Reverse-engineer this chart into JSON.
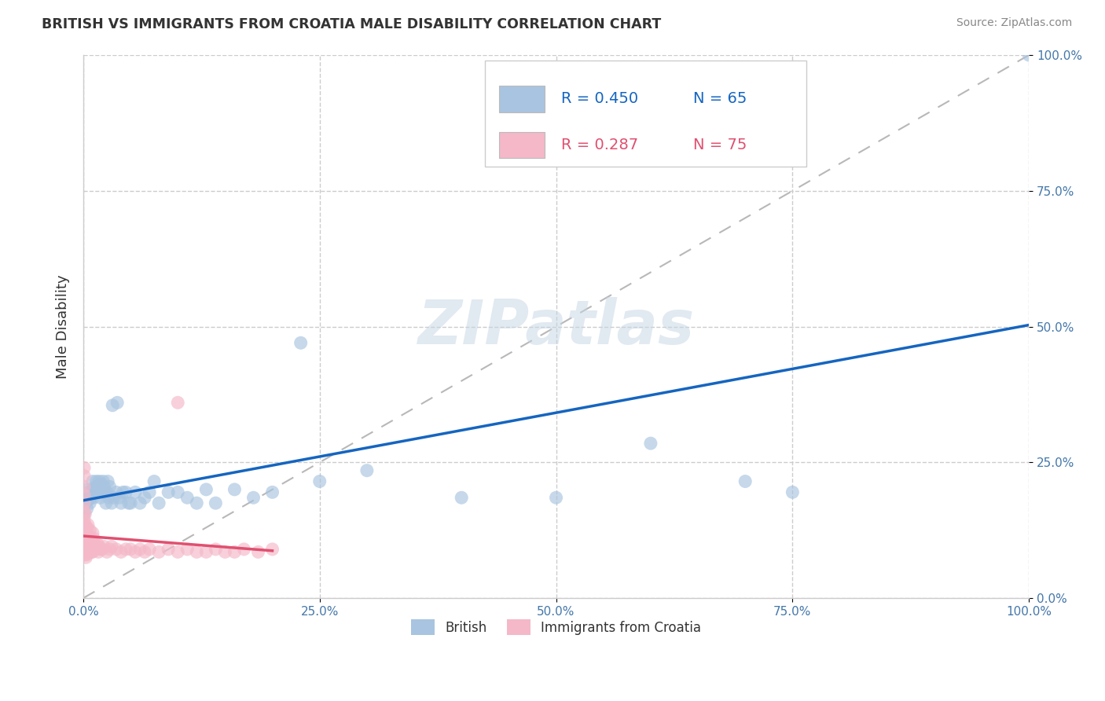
{
  "title": "BRITISH VS IMMIGRANTS FROM CROATIA MALE DISABILITY CORRELATION CHART",
  "source": "Source: ZipAtlas.com",
  "ylabel": "Male Disability",
  "watermark": "ZIPatlas",
  "british_R": "0.450",
  "british_N": "65",
  "croatia_R": "0.287",
  "croatia_N": "75",
  "british_color": "#a8c4e0",
  "british_line_color": "#1565c0",
  "croatia_color": "#f4b8c8",
  "croatia_line_color": "#e05070",
  "background_color": "#ffffff",
  "grid_color": "#cccccc",
  "xlim": [
    0,
    1
  ],
  "ylim": [
    0,
    1
  ],
  "xticks": [
    0,
    0.25,
    0.5,
    0.75,
    1.0
  ],
  "yticks": [
    0,
    0.25,
    0.5,
    0.75,
    1.0
  ],
  "xticklabels": [
    "0.0%",
    "25.0%",
    "50.0%",
    "75.0%",
    "100.0%"
  ],
  "yticklabels": [
    "0.0%",
    "25.0%",
    "50.0%",
    "75.0%",
    "100.0%"
  ],
  "british_x": [
    0.001,
    0.002,
    0.003,
    0.003,
    0.004,
    0.005,
    0.006,
    0.007,
    0.008,
    0.009,
    0.01,
    0.01,
    0.011,
    0.012,
    0.013,
    0.014,
    0.015,
    0.016,
    0.017,
    0.018,
    0.019,
    0.02,
    0.021,
    0.022,
    0.023,
    0.024,
    0.025,
    0.026,
    0.027,
    0.028,
    0.03,
    0.031,
    0.032,
    0.035,
    0.036,
    0.038,
    0.04,
    0.042,
    0.045,
    0.048,
    0.05,
    0.055,
    0.06,
    0.065,
    0.07,
    0.075,
    0.08,
    0.09,
    0.1,
    0.11,
    0.12,
    0.13,
    0.14,
    0.16,
    0.18,
    0.2,
    0.25,
    0.3,
    0.4,
    0.5,
    0.6,
    0.7,
    0.23,
    0.75,
    1.0
  ],
  "british_y": [
    0.155,
    0.175,
    0.185,
    0.2,
    0.165,
    0.18,
    0.195,
    0.175,
    0.185,
    0.195,
    0.2,
    0.215,
    0.185,
    0.195,
    0.205,
    0.215,
    0.195,
    0.205,
    0.215,
    0.185,
    0.21,
    0.195,
    0.215,
    0.205,
    0.195,
    0.175,
    0.195,
    0.215,
    0.185,
    0.205,
    0.175,
    0.355,
    0.185,
    0.195,
    0.36,
    0.185,
    0.175,
    0.195,
    0.195,
    0.175,
    0.175,
    0.195,
    0.175,
    0.185,
    0.195,
    0.215,
    0.175,
    0.195,
    0.195,
    0.185,
    0.175,
    0.2,
    0.175,
    0.2,
    0.185,
    0.195,
    0.215,
    0.235,
    0.185,
    0.185,
    0.285,
    0.215,
    0.47,
    0.195,
    1.0
  ],
  "croatia_x": [
    0.001,
    0.001,
    0.001,
    0.001,
    0.001,
    0.001,
    0.001,
    0.001,
    0.001,
    0.001,
    0.001,
    0.002,
    0.002,
    0.002,
    0.002,
    0.002,
    0.003,
    0.003,
    0.003,
    0.003,
    0.004,
    0.004,
    0.004,
    0.004,
    0.005,
    0.005,
    0.005,
    0.005,
    0.006,
    0.006,
    0.007,
    0.007,
    0.007,
    0.008,
    0.008,
    0.009,
    0.009,
    0.01,
    0.01,
    0.01,
    0.011,
    0.011,
    0.012,
    0.013,
    0.014,
    0.015,
    0.016,
    0.017,
    0.018,
    0.02,
    0.022,
    0.025,
    0.028,
    0.03,
    0.035,
    0.04,
    0.045,
    0.05,
    0.055,
    0.06,
    0.065,
    0.07,
    0.08,
    0.09,
    0.1,
    0.11,
    0.12,
    0.13,
    0.14,
    0.15,
    0.16,
    0.17,
    0.185,
    0.2,
    0.1
  ],
  "croatia_y": [
    0.085,
    0.1,
    0.115,
    0.13,
    0.145,
    0.16,
    0.175,
    0.19,
    0.205,
    0.225,
    0.24,
    0.08,
    0.095,
    0.115,
    0.135,
    0.155,
    0.075,
    0.09,
    0.11,
    0.13,
    0.08,
    0.095,
    0.11,
    0.13,
    0.085,
    0.1,
    0.115,
    0.135,
    0.09,
    0.11,
    0.085,
    0.105,
    0.125,
    0.09,
    0.11,
    0.085,
    0.105,
    0.085,
    0.1,
    0.12,
    0.09,
    0.11,
    0.095,
    0.09,
    0.095,
    0.1,
    0.085,
    0.095,
    0.09,
    0.09,
    0.095,
    0.085,
    0.09,
    0.095,
    0.09,
    0.085,
    0.09,
    0.09,
    0.085,
    0.09,
    0.085,
    0.09,
    0.085,
    0.09,
    0.085,
    0.09,
    0.085,
    0.085,
    0.09,
    0.085,
    0.085,
    0.09,
    0.085,
    0.09,
    0.36
  ],
  "legend_entries": [
    "British",
    "Immigrants from Croatia"
  ]
}
